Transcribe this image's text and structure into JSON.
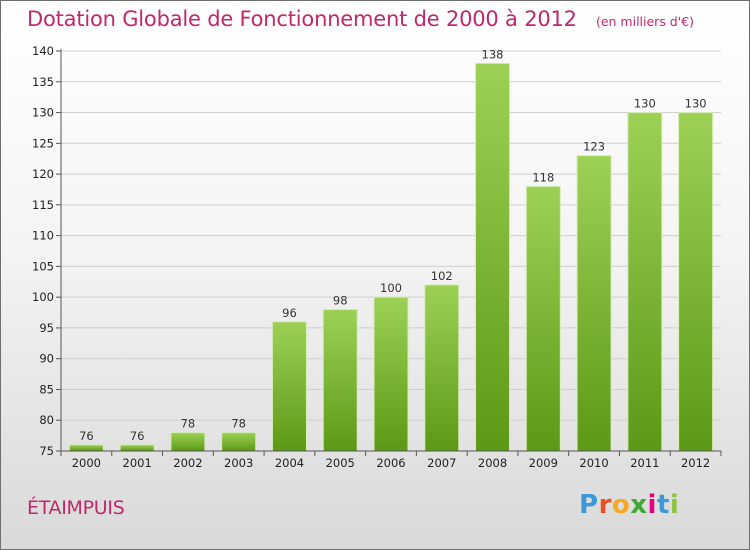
{
  "title": "Dotation Globale de Fonctionnement de 2000 à 2012",
  "unit": "(en milliers d'€)",
  "commune": "ÉTAIMPUIS",
  "logo": {
    "letters": [
      "P",
      "r",
      "o",
      "x",
      "i",
      "t",
      "i"
    ],
    "colors": [
      "#3a9ad9",
      "#e94e1b",
      "#f7a823",
      "#3aaa35",
      "#e5007e",
      "#3a9ad9",
      "#8cc63f"
    ]
  },
  "colors": {
    "bar_top": "#9dd156",
    "bar_bottom": "#5c9916",
    "grid": "#cfcfcf",
    "title": "#c1276d"
  },
  "chart_data": {
    "type": "bar",
    "categories": [
      "2000",
      "2001",
      "2002",
      "2003",
      "2004",
      "2005",
      "2006",
      "2007",
      "2008",
      "2009",
      "2010",
      "2011",
      "2012"
    ],
    "values": [
      76,
      76,
      78,
      78,
      96,
      98,
      100,
      102,
      138,
      118,
      123,
      130,
      130
    ],
    "data_labels": [
      "76",
      "76",
      "78",
      "78",
      "96",
      "98",
      "100",
      "102",
      "138",
      "118",
      "123",
      "130",
      "130"
    ],
    "ylim": [
      75,
      140
    ],
    "yticks": [
      75,
      80,
      85,
      90,
      95,
      100,
      105,
      110,
      115,
      120,
      125,
      130,
      135,
      140
    ],
    "grid": true,
    "legend": "none"
  }
}
